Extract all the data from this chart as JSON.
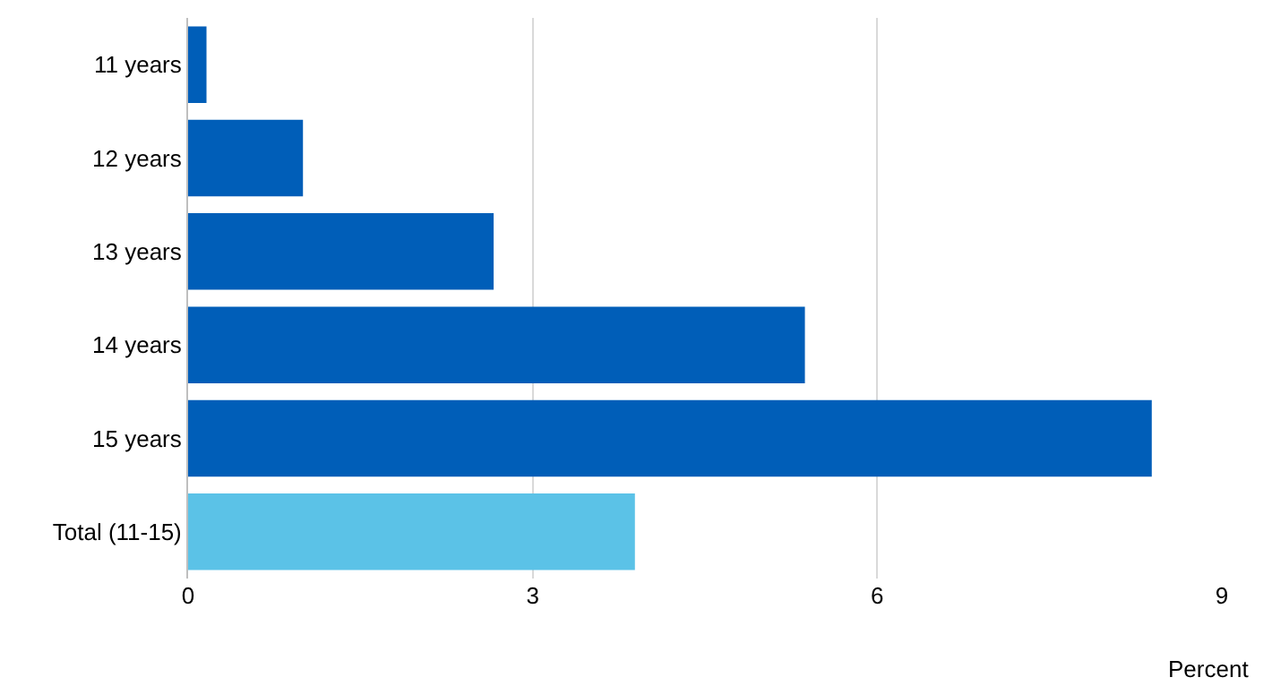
{
  "chart_data": {
    "type": "bar",
    "orientation": "horizontal",
    "categories": [
      "11 years",
      "12 years",
      "13 years",
      "14 years",
      "15 years",
      "Total (11-15)"
    ],
    "values": [
      0.16,
      1.0,
      2.66,
      5.37,
      8.39,
      3.89
    ],
    "colors": [
      "#005eb8",
      "#005eb8",
      "#005eb8",
      "#005eb8",
      "#005eb8",
      "#5bc2e7"
    ],
    "xlim": [
      0,
      9
    ],
    "xticks": [
      0,
      3,
      6,
      9
    ],
    "xlabel": "Percent",
    "grid": "x",
    "legend": false
  }
}
